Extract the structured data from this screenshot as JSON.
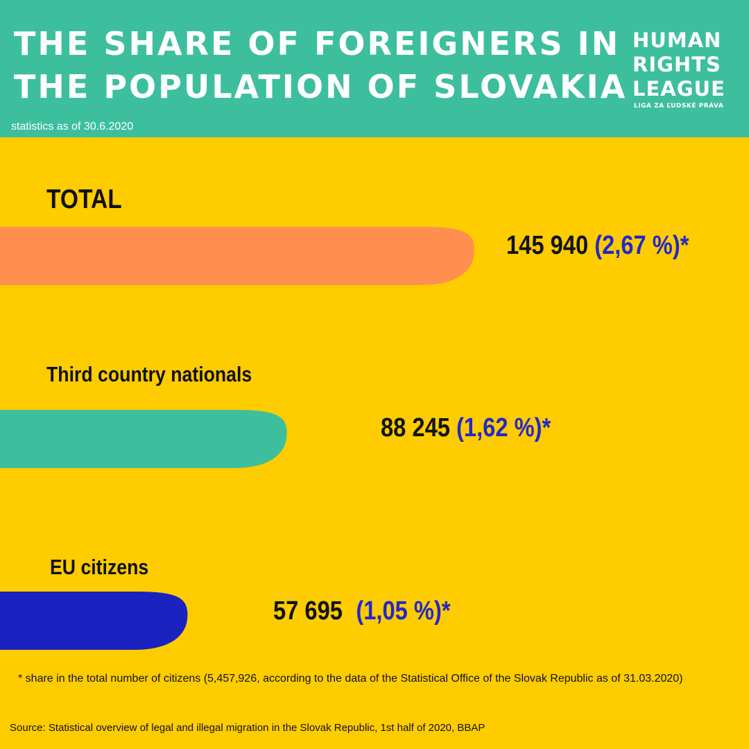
{
  "header": {
    "title_line1": "THE SHARE OF FOREIGNERS IN",
    "title_line2": "THE POPULATION OF SLOVAKIA",
    "subtitle": "statistics as of 30.6.2020",
    "logo_line1": "HUMAN",
    "logo_line2": "RIGHTS",
    "logo_line3": "LEAGUE",
    "logo_sub": "LIGA ZA ĽUDSKÉ PRÁVA"
  },
  "colors": {
    "header_bg": "#3DBF9E",
    "background": "#FFCC00",
    "number_text": "#111111",
    "percent_text": "#2428C8"
  },
  "chart_data": {
    "type": "bar",
    "categories": [
      "TOTAL",
      "Third country nationals",
      "EU citizens"
    ],
    "values": [
      145940,
      88245,
      57695
    ],
    "value_labels": [
      "145 940",
      "88 245",
      "57 695"
    ],
    "percent_labels": [
      "(2,67 %)*",
      "(1,62 %)*",
      "(1,05 %)*"
    ],
    "percentages": [
      2.67,
      1.62,
      1.05
    ],
    "bar_colors": [
      "#FF8F4E",
      "#3DBF9E",
      "#1A22C0"
    ],
    "title": "THE SHARE OF FOREIGNERS IN THE POPULATION OF SLOVAKIA"
  },
  "footer": {
    "footnote": "* share in the total number of citizens (5,457,926, according to the data of the Statistical Office of the Slovak Republic as of 31.03.2020)",
    "source": "Source: Statistical overview of legal and illegal migration in the Slovak Republic, 1st half of 2020, BBAP"
  }
}
